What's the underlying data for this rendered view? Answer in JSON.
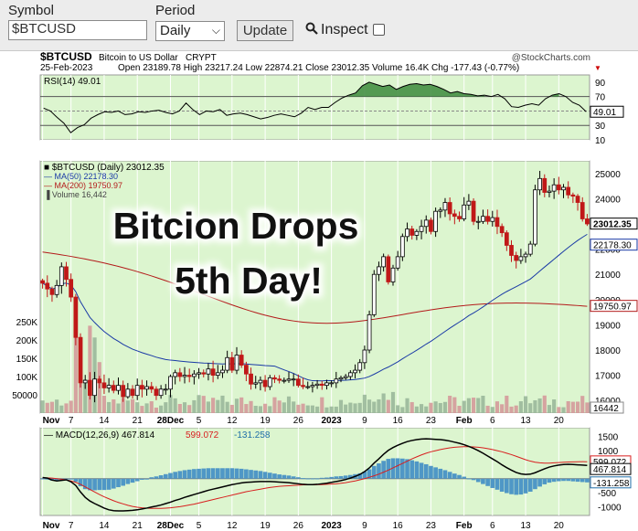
{
  "toolbar": {
    "symbol_label": "Symbol",
    "symbol_value": "$BTCUSD",
    "period_label": "Period",
    "period_value": "Daily",
    "update_label": "Update",
    "inspect_label": "Inspect"
  },
  "header": {
    "symbol": "$BTCUSD",
    "name": "Bitcoin to US Dollar",
    "exchange": "CRYPT",
    "source": "@StockCharts.com",
    "date": "25-Feb-2023",
    "ohlc": "Open 23189.78 High 23217.24 Low 22874.21 Close 23012.35 Volume 16.4K Chg -177.43 (-0.77%)"
  },
  "annotation": {
    "line1": "Bitcion Drops",
    "line2": "5th Day!"
  },
  "chart_data": [
    {
      "type": "line",
      "panel": "RSI",
      "legend": "RSI(14) 49.01",
      "last_value_label": "49.01",
      "ylim": [
        10,
        100
      ],
      "ticks": [
        "90",
        "70",
        "50",
        "30",
        "10"
      ],
      "reference_lines": [
        70,
        50,
        30
      ],
      "values": [
        54,
        50,
        41,
        33,
        20,
        27,
        31,
        40,
        45,
        49,
        48,
        50,
        45,
        46,
        49,
        48,
        50,
        51,
        48,
        46,
        50,
        61,
        52,
        45,
        50,
        49,
        52,
        44,
        46,
        47,
        45,
        42,
        39,
        41,
        44,
        46,
        44,
        42,
        47,
        55,
        52,
        55,
        55,
        62,
        68,
        72,
        75,
        85,
        90,
        87,
        84,
        86,
        80,
        84,
        87,
        88,
        86,
        87,
        84,
        80,
        75,
        77,
        74,
        73,
        71,
        72,
        70,
        73,
        67,
        56,
        55,
        58,
        60,
        58,
        67,
        72,
        74,
        70,
        62,
        58,
        49
      ]
    },
    {
      "type": "candlestick",
      "panel": "price",
      "legend": [
        "$BTCUSD (Daily) 23012.35",
        "MA(50) 22178.30",
        "MA(200) 19750.97",
        "Volume 16,442"
      ],
      "price_tags": [
        "23012.35",
        "22178.30",
        "19750.97"
      ],
      "ylim": [
        15500,
        25500
      ],
      "y_ticks": [
        25000,
        24000,
        23000,
        22000,
        21000,
        20000,
        19000,
        18000,
        17000,
        16000
      ],
      "volume_ticks": [
        "250K",
        "200K",
        "150K",
        "100K",
        "50000"
      ],
      "volume_last": "16442",
      "x_tick_labels": [
        "Nov",
        "7",
        "14",
        "21",
        "28Dec",
        "5",
        "12",
        "19",
        "26",
        "2023",
        "9",
        "16",
        "23",
        "Feb",
        "6",
        "13",
        "20"
      ],
      "x_tick_index": [
        0,
        6,
        13,
        20,
        27,
        33,
        40,
        47,
        54,
        61,
        68,
        75,
        82,
        89,
        95,
        102,
        109
      ],
      "close": [
        20650,
        20420,
        20200,
        20560,
        21300,
        20800,
        20100,
        18500,
        16700,
        16800,
        16200,
        16850,
        16700,
        16500,
        16600,
        16400,
        16600,
        16150,
        16450,
        16200,
        16600,
        16450,
        16550,
        16450,
        16200,
        16450,
        16450,
        16950,
        17100,
        16950,
        17000,
        16950,
        17050,
        17100,
        17050,
        17250,
        17000,
        17100,
        17200,
        17700,
        17200,
        17800,
        17400,
        17050,
        16650,
        16700,
        16800,
        16550,
        16900,
        16850,
        16800,
        16800,
        16850,
        16850,
        16600,
        16550,
        16550,
        16600,
        16650,
        16600,
        16700,
        16700,
        16850,
        16900,
        16950,
        17100,
        17200,
        17500,
        18000,
        19400,
        21000,
        21300,
        21700,
        20700,
        21250,
        21700,
        22500,
        22800,
        22550,
        22700,
        22900,
        23150,
        22700,
        23500,
        23550,
        23850,
        23400,
        23300,
        23200,
        23750,
        23900,
        23100,
        23100,
        23300,
        23100,
        23250,
        22900,
        22650,
        22150,
        21750,
        21550,
        21700,
        21800,
        22200,
        24350,
        24800,
        24250,
        24300,
        24550,
        24350,
        24450,
        24150,
        24100,
        23850,
        23200,
        23000
      ]
    },
    {
      "type": "line",
      "panel": "MACD",
      "legend": [
        "MACD(12,26,9) 467.814",
        "599.072",
        "-131.258"
      ],
      "last_labels": [
        "599.072",
        "467.814",
        "-131.258"
      ],
      "ylim": [
        -1300,
        1800
      ],
      "y_ticks": [
        1500,
        1000,
        500,
        -500,
        -1000
      ],
      "macd": [
        40,
        20,
        -50,
        -80,
        -60,
        -40,
        -110,
        -240,
        -470,
        -660,
        -790,
        -880,
        -960,
        -1040,
        -1100,
        -1130,
        -1140,
        -1140,
        -1130,
        -1120,
        -1100,
        -1070,
        -1040,
        -1000,
        -970,
        -930,
        -880,
        -830,
        -770,
        -720,
        -660,
        -610,
        -560,
        -510,
        -460,
        -410,
        -370,
        -330,
        -290,
        -250,
        -210,
        -180,
        -150,
        -130,
        -120,
        -110,
        -100,
        -100,
        -100,
        -110,
        -120,
        -130,
        -140,
        -160,
        -180,
        -200,
        -210,
        -210,
        -200,
        -180,
        -160,
        -130,
        -100,
        -70,
        -30,
        20,
        80,
        150,
        250,
        380,
        550,
        700,
        860,
        1000,
        1100,
        1180,
        1250,
        1310,
        1350,
        1380,
        1400,
        1410,
        1400,
        1390,
        1380,
        1360,
        1330,
        1290,
        1250,
        1200,
        1140,
        1070,
        990,
        900,
        800,
        700,
        600,
        490,
        390,
        300,
        220,
        170,
        150,
        160,
        210,
        280,
        350,
        410,
        450,
        480,
        500,
        510,
        500,
        490,
        480,
        468
      ],
      "signal": [
        30,
        28,
        20,
        0,
        -20,
        -40,
        -80,
        -130,
        -200,
        -290,
        -380,
        -470,
        -560,
        -640,
        -710,
        -780,
        -840,
        -890,
        -940,
        -980,
        -1010,
        -1030,
        -1040,
        -1050,
        -1050,
        -1050,
        -1040,
        -1030,
        -1010,
        -990,
        -960,
        -930,
        -900,
        -860,
        -820,
        -780,
        -740,
        -700,
        -660,
        -620,
        -580,
        -540,
        -500,
        -460,
        -430,
        -400,
        -370,
        -340,
        -310,
        -290,
        -270,
        -260,
        -250,
        -240,
        -230,
        -220,
        -220,
        -220,
        -210,
        -210,
        -200,
        -190,
        -180,
        -160,
        -140,
        -110,
        -80,
        -40,
        0,
        50,
        100,
        160,
        230,
        300,
        380,
        460,
        540,
        620,
        700,
        770,
        840,
        900,
        950,
        990,
        1030,
        1060,
        1090,
        1110,
        1120,
        1130,
        1130,
        1120,
        1110,
        1090,
        1060,
        1030,
        990,
        950,
        900,
        850,
        790,
        730,
        670,
        620,
        580,
        560,
        550,
        550,
        560,
        570,
        580,
        590,
        595,
        598,
        600,
        599
      ],
      "histogram": [
        10,
        -8,
        -70,
        -80,
        -40,
        0,
        -30,
        -110,
        -270,
        -370,
        -410,
        -410,
        -400,
        -400,
        -390,
        -350,
        -300,
        -250,
        -190,
        -140,
        -90,
        -40,
        0,
        50,
        80,
        120,
        160,
        200,
        240,
        270,
        300,
        320,
        340,
        350,
        360,
        370,
        370,
        370,
        370,
        370,
        370,
        360,
        350,
        330,
        310,
        290,
        270,
        240,
        210,
        180,
        150,
        130,
        110,
        80,
        50,
        20,
        10,
        10,
        10,
        30,
        40,
        60,
        80,
        90,
        110,
        130,
        160,
        190,
        250,
        330,
        450,
        540,
        630,
        700,
        720,
        720,
        710,
        690,
        650,
        610,
        560,
        510,
        450,
        400,
        350,
        300,
        240,
        180,
        130,
        70,
        10,
        -50,
        -120,
        -190,
        -260,
        -330,
        -390,
        -460,
        -510,
        -550,
        -570,
        -560,
        -520,
        -460,
        -370,
        -280,
        -200,
        -140,
        -110,
        -90,
        -80,
        -80,
        -95,
        -108,
        -120,
        -131
      ]
    }
  ]
}
